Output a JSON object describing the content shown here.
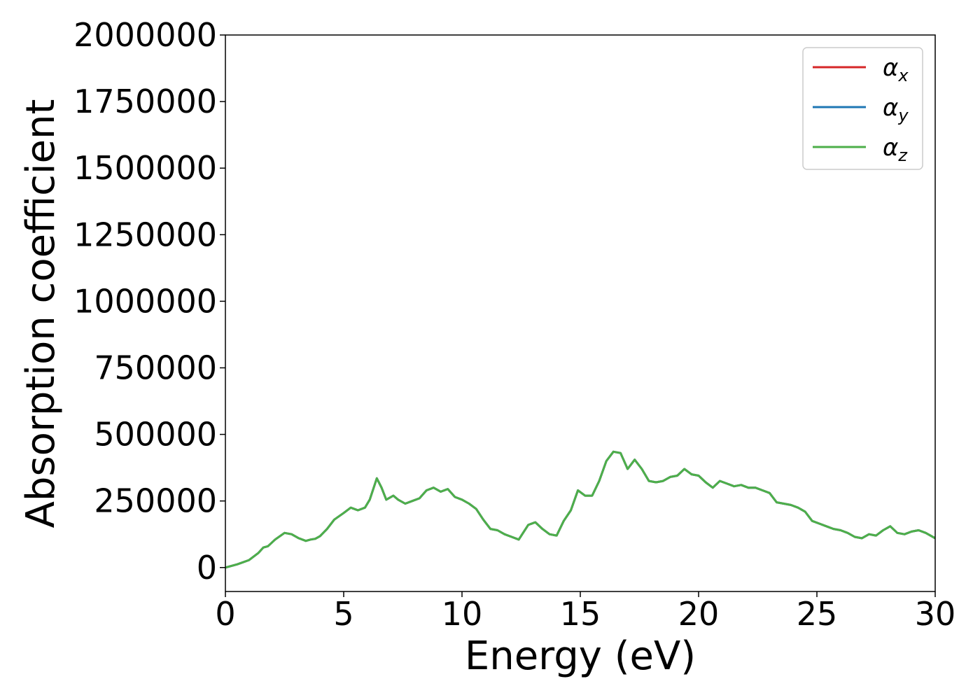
{
  "chart_data": {
    "type": "line",
    "title": "",
    "xlabel": "Energy (eV)",
    "ylabel": "Absorption coefficient",
    "xlim": [
      0,
      30
    ],
    "ylim": [
      -90000,
      2000000
    ],
    "x_ticks": [
      0,
      5,
      10,
      15,
      20,
      25,
      30
    ],
    "x_tick_labels": [
      "0",
      "5",
      "10",
      "15",
      "20",
      "25",
      "30"
    ],
    "y_ticks": [
      0,
      250000,
      500000,
      750000,
      1000000,
      1250000,
      1500000,
      1750000,
      2000000
    ],
    "y_tick_labels": [
      "0",
      "250000",
      "500000",
      "750000",
      "1000000",
      "1250000",
      "1500000",
      "1750000",
      "2000000"
    ],
    "grid": false,
    "legend_position": "top-right",
    "series": [
      {
        "name": "αx",
        "base": "α",
        "sub": "x",
        "color": "#d62728",
        "x": [
          0,
          0.5,
          1.0,
          1.4,
          1.6,
          1.8,
          2.1,
          2.5,
          2.8,
          3.1,
          3.4,
          3.6,
          3.8,
          4.0,
          4.3,
          4.6,
          5.0,
          5.3,
          5.6,
          5.9,
          6.1,
          6.4,
          6.6,
          6.8,
          7.1,
          7.3,
          7.6,
          7.9,
          8.2,
          8.5,
          8.8,
          9.1,
          9.4,
          9.7,
          10.0,
          10.3,
          10.6,
          10.9,
          11.2,
          11.5,
          11.8,
          12.1,
          12.4,
          12.8,
          13.1,
          13.4,
          13.7,
          14.0,
          14.3,
          14.6,
          14.9,
          15.2,
          15.5,
          15.8,
          16.1,
          16.4,
          16.7,
          17.0,
          17.3,
          17.6,
          17.9,
          18.2,
          18.5,
          18.8,
          19.1,
          19.4,
          19.7,
          20.0,
          20.3,
          20.6,
          20.9,
          21.2,
          21.5,
          21.8,
          22.1,
          22.4,
          22.7,
          23.0,
          23.3,
          23.6,
          23.9,
          24.2,
          24.5,
          24.8,
          25.1,
          25.4,
          25.7,
          26.0,
          26.3,
          26.6,
          26.9,
          27.2,
          27.5,
          27.8,
          28.1,
          28.4,
          28.7,
          29.0,
          29.3,
          29.6,
          30.0
        ],
        "y": [
          0,
          12000,
          28000,
          55000,
          75000,
          80000,
          105000,
          130000,
          125000,
          110000,
          100000,
          105000,
          108000,
          118000,
          145000,
          180000,
          205000,
          225000,
          215000,
          225000,
          255000,
          335000,
          300000,
          255000,
          270000,
          255000,
          240000,
          250000,
          260000,
          290000,
          300000,
          285000,
          295000,
          265000,
          255000,
          240000,
          220000,
          180000,
          145000,
          140000,
          125000,
          115000,
          105000,
          160000,
          170000,
          145000,
          125000,
          120000,
          175000,
          215000,
          290000,
          270000,
          270000,
          325000,
          400000,
          435000,
          430000,
          370000,
          405000,
          370000,
          325000,
          320000,
          325000,
          340000,
          345000,
          370000,
          350000,
          345000,
          320000,
          300000,
          325000,
          315000,
          305000,
          310000,
          300000,
          300000,
          290000,
          280000,
          245000,
          240000,
          235000,
          225000,
          210000,
          175000,
          165000,
          155000,
          145000,
          140000,
          130000,
          115000,
          110000,
          125000,
          120000,
          140000,
          155000,
          130000,
          125000,
          135000,
          140000,
          130000,
          110000
        ]
      },
      {
        "name": "αy",
        "base": "α",
        "sub": "y",
        "color": "#1f77b4",
        "x": [
          0,
          0.5,
          1.0,
          1.4,
          1.6,
          1.8,
          2.1,
          2.5,
          2.8,
          3.1,
          3.4,
          3.6,
          3.8,
          4.0,
          4.3,
          4.6,
          5.0,
          5.3,
          5.6,
          5.9,
          6.1,
          6.4,
          6.6,
          6.8,
          7.1,
          7.3,
          7.6,
          7.9,
          8.2,
          8.5,
          8.8,
          9.1,
          9.4,
          9.7,
          10.0,
          10.3,
          10.6,
          10.9,
          11.2,
          11.5,
          11.8,
          12.1,
          12.4,
          12.8,
          13.1,
          13.4,
          13.7,
          14.0,
          14.3,
          14.6,
          14.9,
          15.2,
          15.5,
          15.8,
          16.1,
          16.4,
          16.7,
          17.0,
          17.3,
          17.6,
          17.9,
          18.2,
          18.5,
          18.8,
          19.1,
          19.4,
          19.7,
          20.0,
          20.3,
          20.6,
          20.9,
          21.2,
          21.5,
          21.8,
          22.1,
          22.4,
          22.7,
          23.0,
          23.3,
          23.6,
          23.9,
          24.2,
          24.5,
          24.8,
          25.1,
          25.4,
          25.7,
          26.0,
          26.3,
          26.6,
          26.9,
          27.2,
          27.5,
          27.8,
          28.1,
          28.4,
          28.7,
          29.0,
          29.3,
          29.6,
          30.0
        ],
        "y": [
          0,
          12000,
          28000,
          55000,
          75000,
          80000,
          105000,
          130000,
          125000,
          110000,
          100000,
          105000,
          108000,
          118000,
          145000,
          180000,
          205000,
          225000,
          215000,
          225000,
          255000,
          335000,
          300000,
          255000,
          270000,
          255000,
          240000,
          250000,
          260000,
          290000,
          300000,
          285000,
          295000,
          265000,
          255000,
          240000,
          220000,
          180000,
          145000,
          140000,
          125000,
          115000,
          105000,
          160000,
          170000,
          145000,
          125000,
          120000,
          175000,
          215000,
          290000,
          270000,
          270000,
          325000,
          400000,
          435000,
          430000,
          370000,
          405000,
          370000,
          325000,
          320000,
          325000,
          340000,
          345000,
          370000,
          350000,
          345000,
          320000,
          300000,
          325000,
          315000,
          305000,
          310000,
          300000,
          300000,
          290000,
          280000,
          245000,
          240000,
          235000,
          225000,
          210000,
          175000,
          165000,
          155000,
          145000,
          140000,
          130000,
          115000,
          110000,
          125000,
          120000,
          140000,
          155000,
          130000,
          125000,
          135000,
          140000,
          130000,
          110000
        ]
      },
      {
        "name": "αz",
        "base": "α",
        "sub": "z",
        "color": "#4daf4a",
        "x": [
          0,
          0.5,
          1.0,
          1.4,
          1.6,
          1.8,
          2.1,
          2.5,
          2.8,
          3.1,
          3.4,
          3.6,
          3.8,
          4.0,
          4.3,
          4.6,
          5.0,
          5.3,
          5.6,
          5.9,
          6.1,
          6.4,
          6.6,
          6.8,
          7.1,
          7.3,
          7.6,
          7.9,
          8.2,
          8.5,
          8.8,
          9.1,
          9.4,
          9.7,
          10.0,
          10.3,
          10.6,
          10.9,
          11.2,
          11.5,
          11.8,
          12.1,
          12.4,
          12.8,
          13.1,
          13.4,
          13.7,
          14.0,
          14.3,
          14.6,
          14.9,
          15.2,
          15.5,
          15.8,
          16.1,
          16.4,
          16.7,
          17.0,
          17.3,
          17.6,
          17.9,
          18.2,
          18.5,
          18.8,
          19.1,
          19.4,
          19.7,
          20.0,
          20.3,
          20.6,
          20.9,
          21.2,
          21.5,
          21.8,
          22.1,
          22.4,
          22.7,
          23.0,
          23.3,
          23.6,
          23.9,
          24.2,
          24.5,
          24.8,
          25.1,
          25.4,
          25.7,
          26.0,
          26.3,
          26.6,
          26.9,
          27.2,
          27.5,
          27.8,
          28.1,
          28.4,
          28.7,
          29.0,
          29.3,
          29.6,
          30.0
        ],
        "y": [
          0,
          12000,
          28000,
          55000,
          75000,
          80000,
          105000,
          130000,
          125000,
          110000,
          100000,
          105000,
          108000,
          118000,
          145000,
          180000,
          205000,
          225000,
          215000,
          225000,
          255000,
          335000,
          300000,
          255000,
          270000,
          255000,
          240000,
          250000,
          260000,
          290000,
          300000,
          285000,
          295000,
          265000,
          255000,
          240000,
          220000,
          180000,
          145000,
          140000,
          125000,
          115000,
          105000,
          160000,
          170000,
          145000,
          125000,
          120000,
          175000,
          215000,
          290000,
          270000,
          270000,
          325000,
          400000,
          435000,
          430000,
          370000,
          405000,
          370000,
          325000,
          320000,
          325000,
          340000,
          345000,
          370000,
          350000,
          345000,
          320000,
          300000,
          325000,
          315000,
          305000,
          310000,
          300000,
          300000,
          290000,
          280000,
          245000,
          240000,
          235000,
          225000,
          210000,
          175000,
          165000,
          155000,
          145000,
          140000,
          130000,
          115000,
          110000,
          125000,
          120000,
          140000,
          155000,
          130000,
          125000,
          135000,
          140000,
          130000,
          110000
        ]
      }
    ]
  }
}
